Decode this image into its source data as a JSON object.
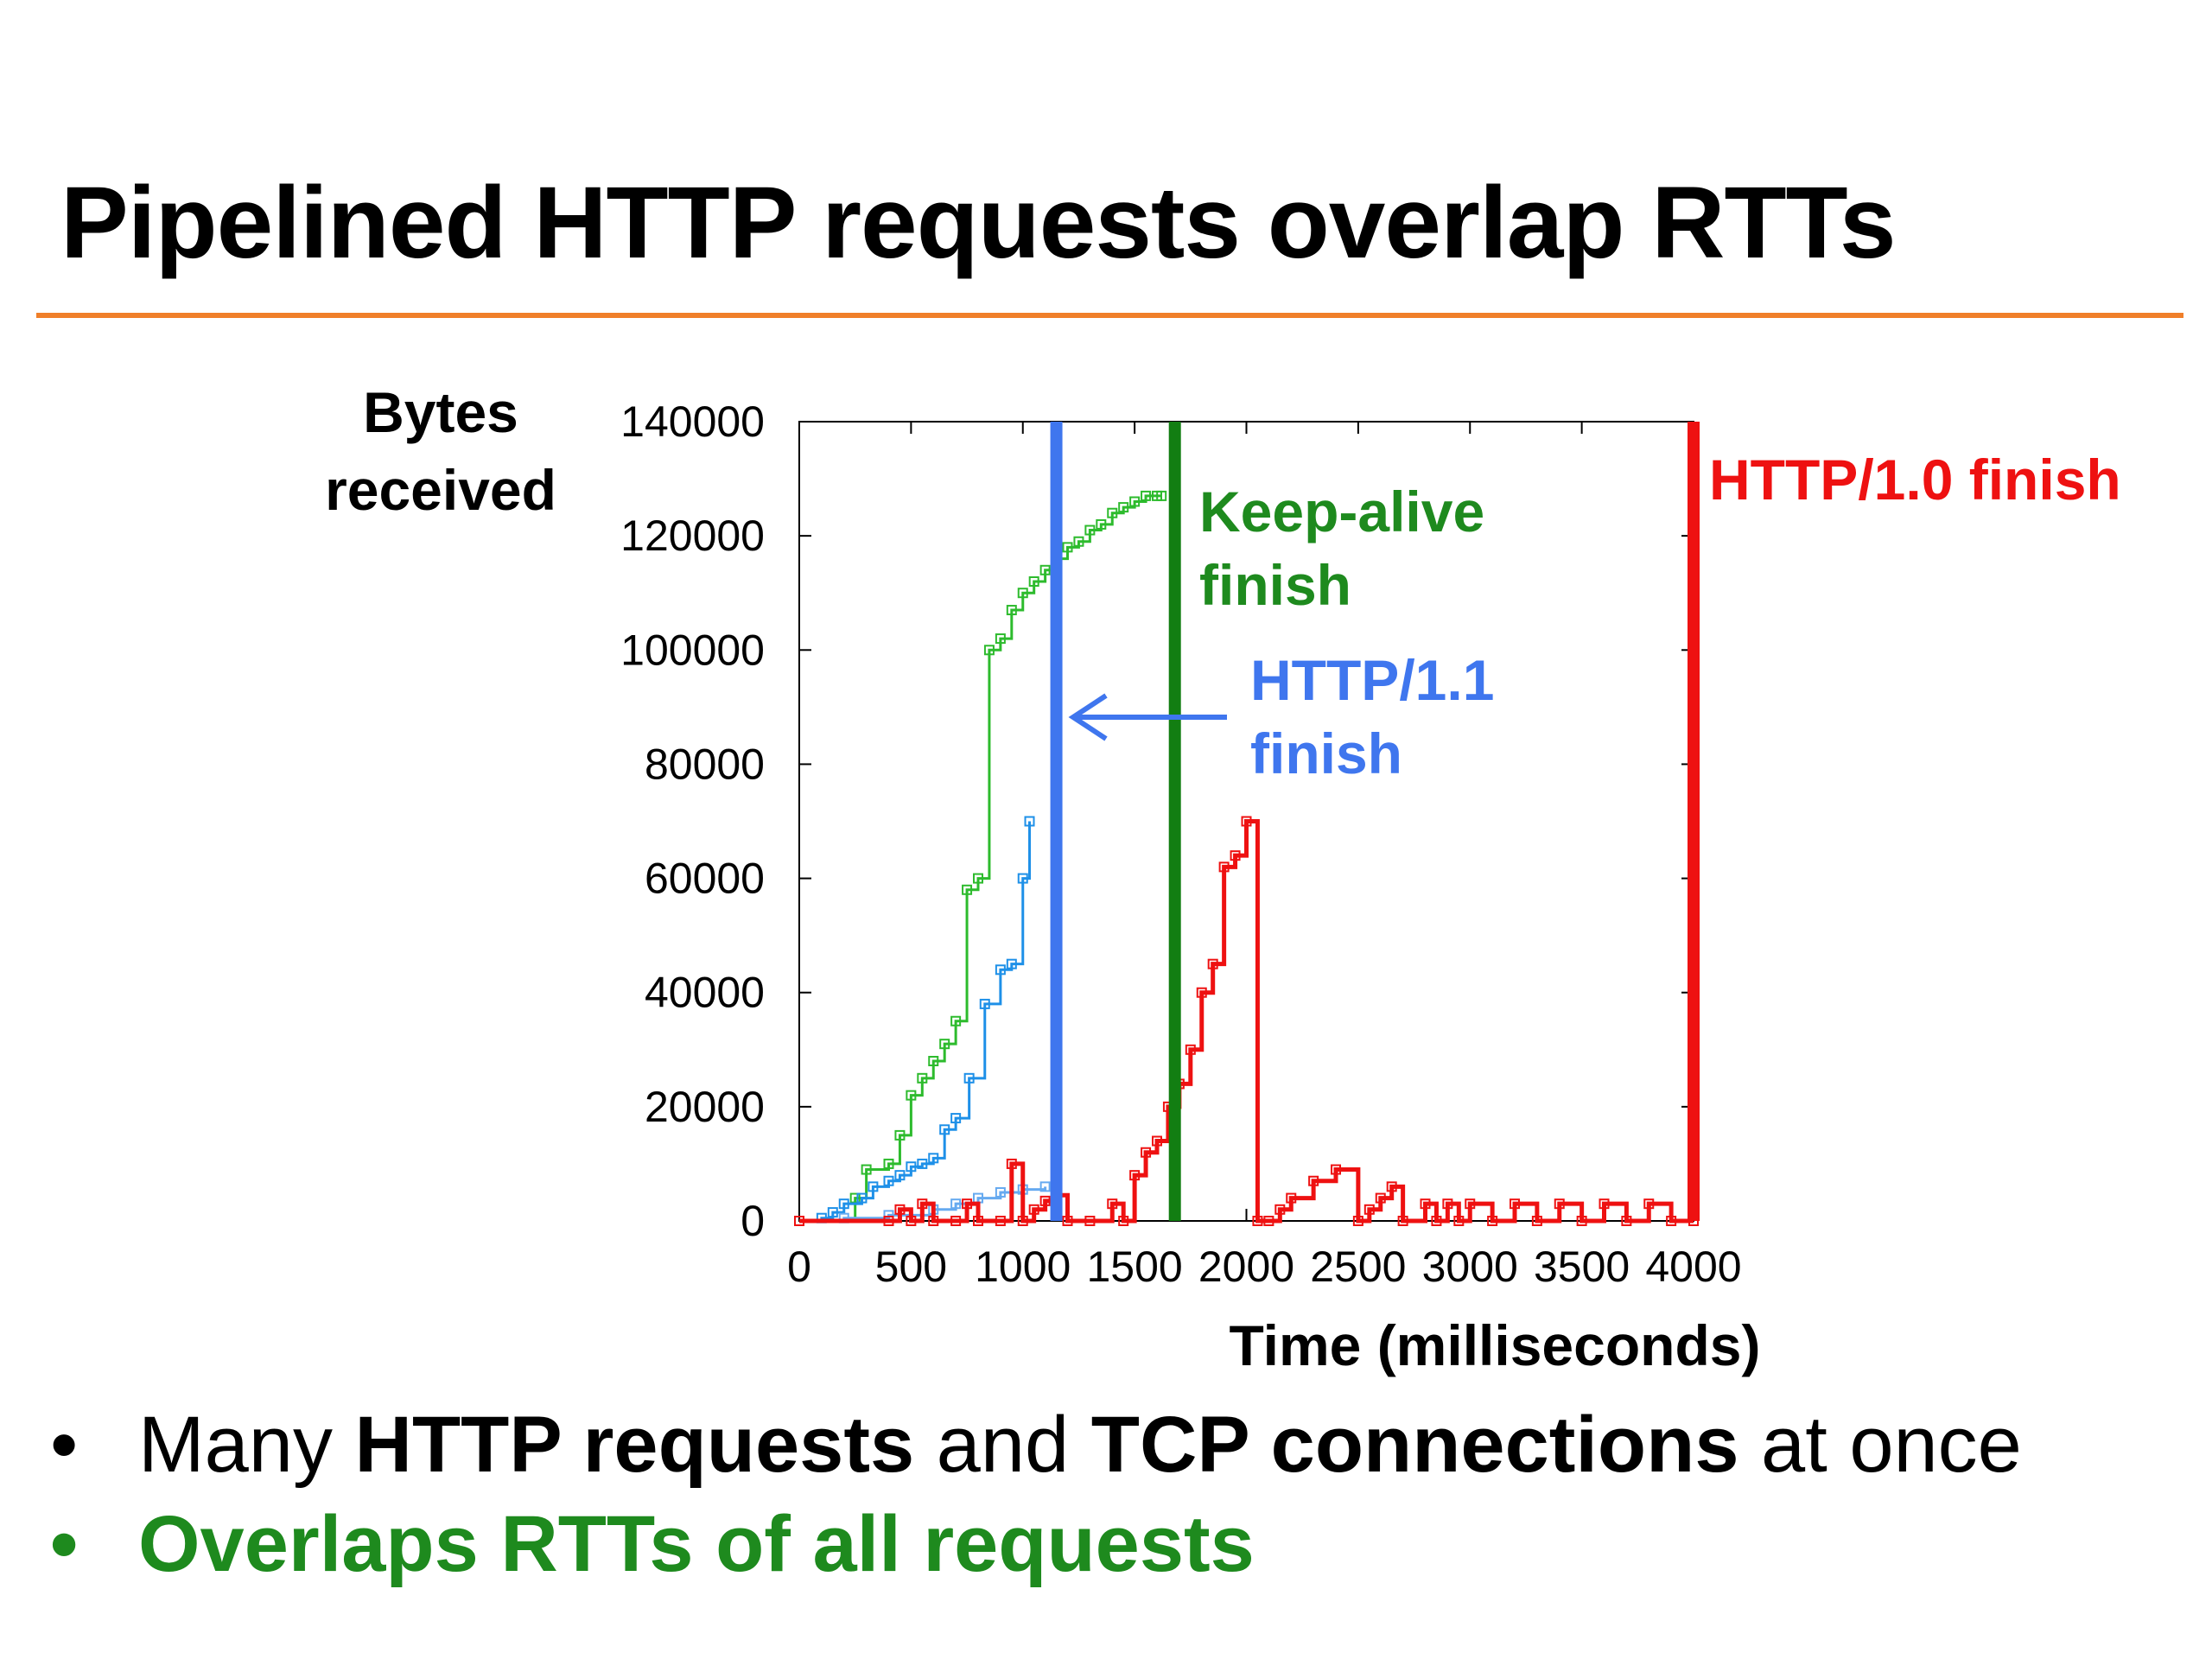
{
  "slide": {
    "title": "Pipelined HTTP requests overlap RTTs",
    "accent_color": "#f07f2a"
  },
  "bullets": [
    {
      "marker": "•",
      "parts": [
        {
          "text": "Many ",
          "bold": false
        },
        {
          "text": "HTTP requests",
          "bold": true
        },
        {
          "text": " and ",
          "bold": false
        },
        {
          "text": "TCP connections",
          "bold": true
        },
        {
          "text": " at once",
          "bold": false
        }
      ],
      "color": "#000000"
    },
    {
      "marker": "•",
      "parts": [
        {
          "text": "Overlaps RTTs of all requests",
          "bold": true
        }
      ],
      "color": "#1e8a1e"
    }
  ],
  "chart_data": {
    "type": "line",
    "title": "",
    "xlabel": "Time (milliseconds)",
    "ylabel": "Bytes received",
    "xlim": [
      0,
      4000
    ],
    "ylim": [
      0,
      140000
    ],
    "xticks": [
      0,
      500,
      1000,
      1500,
      2000,
      2500,
      3000,
      3500,
      4000
    ],
    "yticks": [
      0,
      20000,
      40000,
      60000,
      80000,
      100000,
      120000,
      140000
    ],
    "grid": false,
    "legend": "none",
    "series": [
      {
        "color": "#2dbb2d",
        "x": [
          0,
          250,
          300,
          400,
          450,
          500,
          550,
          600,
          650,
          700,
          750,
          800,
          850,
          900,
          950,
          1000,
          1050,
          1100,
          1150,
          1200,
          1250,
          1300,
          1350,
          1400,
          1450,
          1500,
          1550,
          1600,
          1620
        ],
        "y": [
          0,
          4000,
          9000,
          10000,
          15000,
          22000,
          25000,
          28000,
          31000,
          35000,
          58000,
          60000,
          100000,
          102000,
          107000,
          110000,
          112000,
          114000,
          116000,
          118000,
          119000,
          121000,
          122000,
          124000,
          125000,
          126000,
          127000,
          127000,
          127000
        ]
      },
      {
        "color": "#1e90e8",
        "x": [
          0,
          100,
          150,
          200,
          280,
          330,
          400,
          450,
          500,
          550,
          600,
          650,
          700,
          760,
          830,
          900,
          950,
          1000,
          1030
        ],
        "y": [
          0,
          500,
          1500,
          3000,
          4000,
          6000,
          7000,
          8000,
          9500,
          10000,
          11000,
          16000,
          18000,
          25000,
          38000,
          44000,
          45000,
          60000,
          70000
        ]
      },
      {
        "color": "#66aaf0",
        "x": [
          0,
          200,
          400,
          600,
          700,
          800,
          900,
          1000,
          1100
        ],
        "y": [
          0,
          500,
          1000,
          2000,
          3000,
          4000,
          5000,
          5500,
          6000
        ]
      },
      {
        "color": "#ee1111",
        "x": [
          0,
          400,
          450,
          500,
          550,
          600,
          700,
          750,
          800,
          900,
          950,
          1000,
          1050,
          1100,
          1150,
          1200,
          1300,
          1400,
          1450,
          1500,
          1550,
          1600,
          1650,
          1700,
          1750,
          1800,
          1850,
          1900,
          1950,
          2000,
          2050,
          2100,
          2150,
          2200,
          2300,
          2400,
          2500,
          2550,
          2600,
          2650,
          2700,
          2800,
          2850,
          2900,
          2950,
          3000,
          3100,
          3200,
          3300,
          3400,
          3500,
          3600,
          3700,
          3800,
          3900,
          4000
        ],
        "y": [
          0,
          0,
          2000,
          0,
          3000,
          0,
          0,
          3000,
          0,
          0,
          10000,
          0,
          2000,
          3500,
          4500,
          0,
          0,
          3000,
          0,
          8000,
          12000,
          14000,
          20000,
          24000,
          30000,
          40000,
          45000,
          62000,
          64000,
          70000,
          0,
          0,
          2000,
          4000,
          7000,
          9000,
          0,
          2000,
          4000,
          6000,
          0,
          3000,
          0,
          3000,
          0,
          3000,
          0,
          3000,
          0,
          3000,
          0,
          3000,
          0,
          3000,
          0,
          0
        ]
      }
    ],
    "finish_lines": [
      {
        "x": 1150,
        "color": "#3f76ee"
      },
      {
        "x": 1680,
        "color": "#127e12"
      },
      {
        "x": 4000,
        "color": "#ee1111"
      }
    ],
    "annotations": [
      {
        "text_lines": [
          "Keep-alive",
          "finish"
        ],
        "color": "#1e8a1e"
      },
      {
        "text_lines": [
          "HTTP/1.1",
          "finish"
        ],
        "color": "#3f76ee"
      },
      {
        "text_lines": [
          "HTTP/1.0 finish"
        ],
        "color": "#ee1111"
      }
    ]
  }
}
